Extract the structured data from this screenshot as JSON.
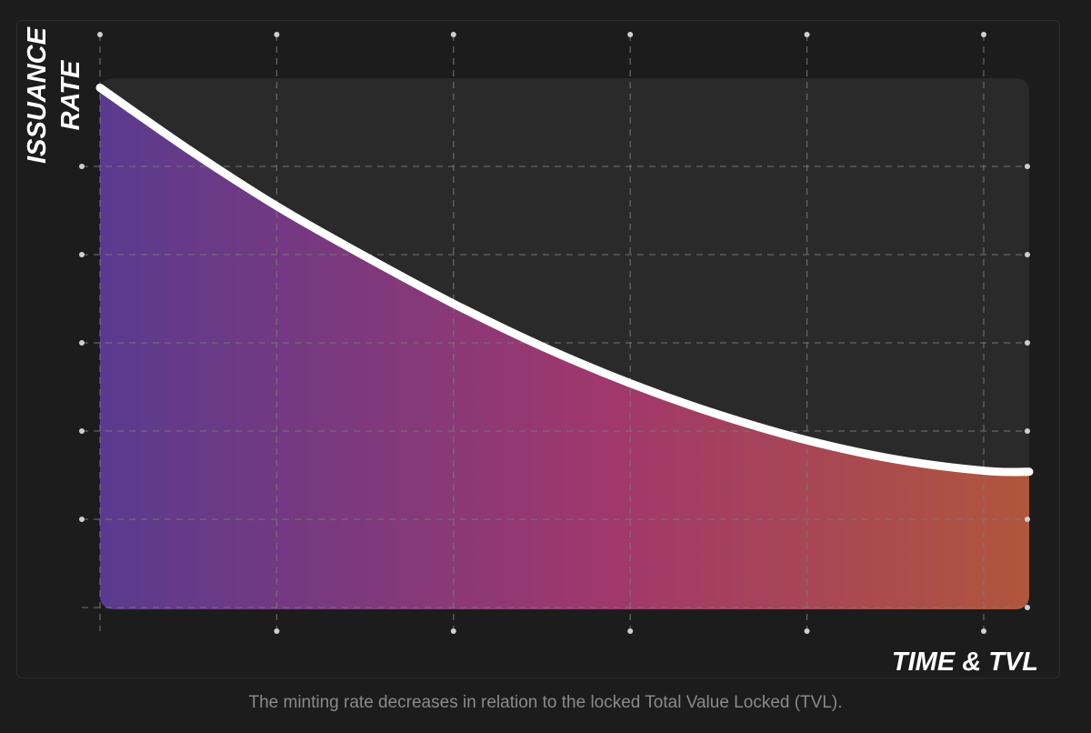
{
  "chart_data": {
    "type": "area",
    "ylabel_lines": [
      "ISSUANCE",
      "RATE"
    ],
    "xlabel": "TIME & TVL",
    "grid": true,
    "ticks_labeled": false,
    "x_grid_count": 6,
    "y_grid_count": 6,
    "xlim": [
      0,
      5.25
    ],
    "ylim": [
      0,
      5.6
    ],
    "series": [
      {
        "x": [
          0,
          0.5,
          1,
          1.5,
          2,
          2.5,
          3,
          3.5,
          4,
          4.5,
          5,
          5.25
        ],
        "y": [
          5.5,
          4.85,
          4.25,
          3.72,
          3.22,
          2.77,
          2.38,
          2.05,
          1.78,
          1.58,
          1.46,
          1.45
        ]
      }
    ],
    "colors": {
      "gradient_start": "#5a3a8e",
      "gradient_mid": "#a0386c",
      "gradient_end": "#b0563c",
      "line": "#ffffff",
      "grid": "#7a7a7a",
      "plot_background": "#2a2a2a"
    }
  },
  "caption": "The minting rate decreases in relation to the locked Total Value Locked (TVL)."
}
